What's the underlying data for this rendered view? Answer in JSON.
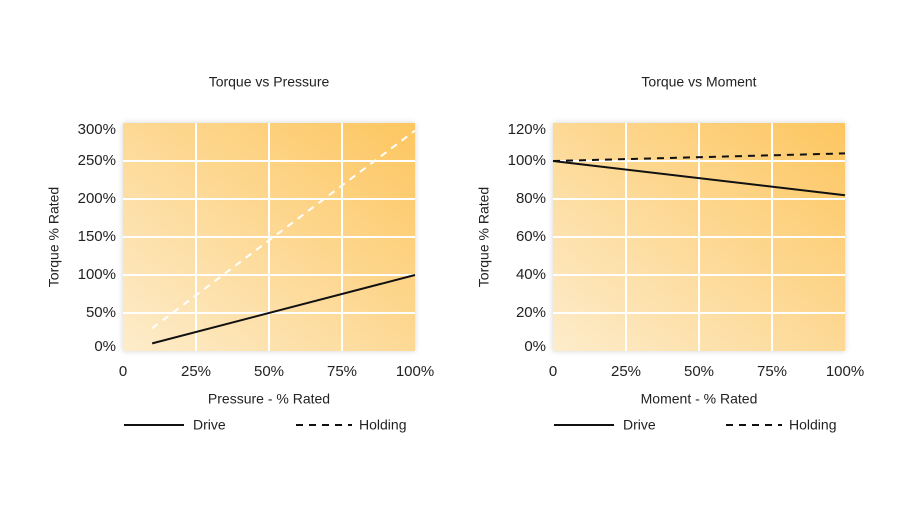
{
  "chart_data": [
    {
      "type": "line",
      "title": "Torque vs Pressure",
      "x_label": "Pressure - % Rated",
      "y_label": "Torque % Rated",
      "xlim": [
        0,
        100
      ],
      "ylim": [
        0,
        300
      ],
      "xticks": [
        {
          "value": 0,
          "label": "0"
        },
        {
          "value": 25,
          "label": "25%"
        },
        {
          "value": 50,
          "label": "50%"
        },
        {
          "value": 75,
          "label": "75%"
        },
        {
          "value": 100,
          "label": "100%"
        }
      ],
      "yticks": [
        {
          "value": 0,
          "label": "0%"
        },
        {
          "value": 50,
          "label": "50%"
        },
        {
          "value": 100,
          "label": "100%"
        },
        {
          "value": 150,
          "label": "150%"
        },
        {
          "value": 200,
          "label": "200%"
        },
        {
          "value": 250,
          "label": "250%"
        },
        {
          "value": 300,
          "label": "300%"
        }
      ],
      "grid": true,
      "x": [
        10,
        100
      ],
      "series": [
        {
          "name": "Drive",
          "color": "#111111",
          "style": "solid",
          "values": [
            10,
            100
          ]
        },
        {
          "name": "Holding",
          "color": "#ffffff",
          "style": "dashed",
          "values": [
            30,
            290
          ]
        }
      ]
    },
    {
      "type": "line",
      "title": "Torque vs Moment",
      "x_label": "Moment - % Rated",
      "y_label": "Torque % Rated",
      "xlim": [
        0,
        100
      ],
      "ylim": [
        0,
        120
      ],
      "xticks": [
        {
          "value": 0,
          "label": "0"
        },
        {
          "value": 25,
          "label": "25%"
        },
        {
          "value": 50,
          "label": "50%"
        },
        {
          "value": 75,
          "label": "75%"
        },
        {
          "value": 100,
          "label": "100%"
        }
      ],
      "yticks": [
        {
          "value": 0,
          "label": "0%"
        },
        {
          "value": 20,
          "label": "20%"
        },
        {
          "value": 40,
          "label": "40%"
        },
        {
          "value": 60,
          "label": "60%"
        },
        {
          "value": 80,
          "label": "80%"
        },
        {
          "value": 100,
          "label": "100%"
        },
        {
          "value": 120,
          "label": "120%"
        }
      ],
      "grid": true,
      "x": [
        0,
        100
      ],
      "series": [
        {
          "name": "Drive",
          "color": "#111111",
          "style": "solid",
          "values": [
            100,
            82
          ]
        },
        {
          "name": "Holding",
          "color": "#111111",
          "style": "dashed",
          "values": [
            100,
            104
          ]
        }
      ]
    }
  ]
}
